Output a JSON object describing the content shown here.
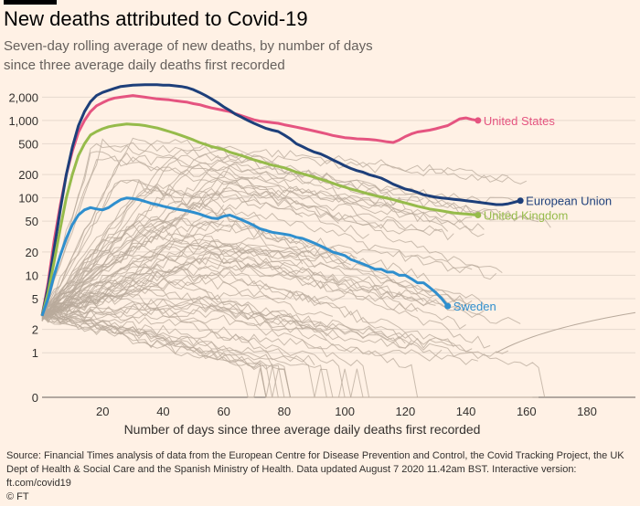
{
  "title": "New deaths attributed to Covid-19",
  "subtitle": "Seven-day rolling average of new deaths, by number of days since three average daily deaths first recorded",
  "source": "Source: Financial Times analysis of data from the European Centre for Disease Prevention and Control, the Covid Tracking Project, the UK Dept of Health & Social Care and the Spanish Ministry of Health. Data updated August 7 2020 11.42am BST. Interactive version: ft.com/covid19",
  "copyright": "© FT",
  "chart_data": {
    "type": "line",
    "xlabel": "Number of days since three average daily deaths first recorded",
    "ylabel": "",
    "y_scale": "log",
    "x_ticks": [
      20,
      40,
      60,
      80,
      100,
      120,
      140,
      160,
      180
    ],
    "y_ticks": [
      {
        "v": 0,
        "label": "0"
      },
      {
        "v": 1,
        "label": "1"
      },
      {
        "v": 2,
        "label": "2"
      },
      {
        "v": 5,
        "label": "5"
      },
      {
        "v": 10,
        "label": "10"
      },
      {
        "v": 20,
        "label": "20"
      },
      {
        "v": 50,
        "label": "50"
      },
      {
        "v": 100,
        "label": "100"
      },
      {
        "v": 200,
        "label": "200"
      },
      {
        "v": 500,
        "label": "500"
      },
      {
        "v": 1000,
        "label": "1,000"
      },
      {
        "v": 2000,
        "label": "2,000"
      }
    ],
    "grid": true,
    "series": [
      {
        "name": "United States",
        "color": "#e55480",
        "label": "United States",
        "points": [
          [
            0,
            3
          ],
          [
            2,
            8
          ],
          [
            4,
            28
          ],
          [
            6,
            80
          ],
          [
            8,
            200
          ],
          [
            10,
            400
          ],
          [
            12,
            700
          ],
          [
            14,
            1000
          ],
          [
            16,
            1300
          ],
          [
            18,
            1550
          ],
          [
            20,
            1700
          ],
          [
            22,
            1850
          ],
          [
            24,
            1950
          ],
          [
            26,
            2000
          ],
          [
            28,
            2050
          ],
          [
            30,
            2100
          ],
          [
            32,
            2050
          ],
          [
            34,
            2000
          ],
          [
            36,
            1950
          ],
          [
            38,
            1900
          ],
          [
            40,
            1880
          ],
          [
            42,
            1850
          ],
          [
            44,
            1800
          ],
          [
            46,
            1760
          ],
          [
            48,
            1720
          ],
          [
            50,
            1650
          ],
          [
            52,
            1600
          ],
          [
            54,
            1520
          ],
          [
            56,
            1450
          ],
          [
            58,
            1400
          ],
          [
            60,
            1350
          ],
          [
            62,
            1300
          ],
          [
            64,
            1220
          ],
          [
            66,
            1150
          ],
          [
            68,
            1080
          ],
          [
            70,
            1020
          ],
          [
            72,
            980
          ],
          [
            74,
            960
          ],
          [
            76,
            940
          ],
          [
            78,
            920
          ],
          [
            80,
            880
          ],
          [
            82,
            850
          ],
          [
            84,
            820
          ],
          [
            86,
            790
          ],
          [
            88,
            760
          ],
          [
            90,
            730
          ],
          [
            92,
            700
          ],
          [
            94,
            670
          ],
          [
            96,
            640
          ],
          [
            98,
            620
          ],
          [
            100,
            600
          ],
          [
            102,
            590
          ],
          [
            104,
            580
          ],
          [
            106,
            575
          ],
          [
            108,
            570
          ],
          [
            110,
            560
          ],
          [
            112,
            545
          ],
          [
            114,
            530
          ],
          [
            116,
            520
          ],
          [
            118,
            560
          ],
          [
            120,
            620
          ],
          [
            122,
            670
          ],
          [
            124,
            710
          ],
          [
            126,
            730
          ],
          [
            128,
            750
          ],
          [
            130,
            780
          ],
          [
            132,
            820
          ],
          [
            134,
            860
          ],
          [
            136,
            950
          ],
          [
            138,
            1050
          ],
          [
            140,
            1080
          ],
          [
            142,
            1030
          ],
          [
            144,
            1000
          ]
        ]
      },
      {
        "name": "European Union",
        "color": "#1d3f7a",
        "label": "European Union",
        "points": [
          [
            0,
            3
          ],
          [
            2,
            7
          ],
          [
            4,
            22
          ],
          [
            6,
            70
          ],
          [
            8,
            200
          ],
          [
            10,
            450
          ],
          [
            12,
            850
          ],
          [
            14,
            1300
          ],
          [
            16,
            1750
          ],
          [
            18,
            2100
          ],
          [
            20,
            2300
          ],
          [
            22,
            2450
          ],
          [
            24,
            2600
          ],
          [
            26,
            2750
          ],
          [
            28,
            2800
          ],
          [
            30,
            2850
          ],
          [
            32,
            2880
          ],
          [
            34,
            2900
          ],
          [
            36,
            2900
          ],
          [
            38,
            2900
          ],
          [
            40,
            2850
          ],
          [
            42,
            2850
          ],
          [
            44,
            2800
          ],
          [
            46,
            2750
          ],
          [
            48,
            2650
          ],
          [
            50,
            2500
          ],
          [
            52,
            2300
          ],
          [
            54,
            2100
          ],
          [
            56,
            1900
          ],
          [
            58,
            1700
          ],
          [
            60,
            1500
          ],
          [
            62,
            1350
          ],
          [
            64,
            1200
          ],
          [
            66,
            1100
          ],
          [
            68,
            1000
          ],
          [
            70,
            920
          ],
          [
            72,
            850
          ],
          [
            74,
            790
          ],
          [
            76,
            750
          ],
          [
            78,
            720
          ],
          [
            80,
            650
          ],
          [
            82,
            580
          ],
          [
            84,
            500
          ],
          [
            86,
            460
          ],
          [
            88,
            420
          ],
          [
            90,
            390
          ],
          [
            92,
            370
          ],
          [
            94,
            340
          ],
          [
            96,
            310
          ],
          [
            98,
            285
          ],
          [
            100,
            260
          ],
          [
            102,
            240
          ],
          [
            104,
            225
          ],
          [
            106,
            215
          ],
          [
            108,
            200
          ],
          [
            110,
            190
          ],
          [
            112,
            180
          ],
          [
            114,
            165
          ],
          [
            116,
            150
          ],
          [
            118,
            140
          ],
          [
            120,
            130
          ],
          [
            122,
            125
          ],
          [
            124,
            118
          ],
          [
            126,
            110
          ],
          [
            128,
            106
          ],
          [
            130,
            102
          ],
          [
            132,
            100
          ],
          [
            134,
            98
          ],
          [
            136,
            96
          ],
          [
            138,
            94
          ],
          [
            140,
            92
          ],
          [
            142,
            90
          ],
          [
            144,
            88
          ],
          [
            146,
            86
          ],
          [
            148,
            84
          ],
          [
            150,
            82
          ],
          [
            152,
            82
          ],
          [
            154,
            84
          ],
          [
            156,
            88
          ],
          [
            158,
            92
          ]
        ]
      },
      {
        "name": "United Kingdom",
        "color": "#96bb4b",
        "label": "United Kingdom",
        "points": [
          [
            0,
            3
          ],
          [
            2,
            6
          ],
          [
            4,
            15
          ],
          [
            6,
            40
          ],
          [
            8,
            100
          ],
          [
            10,
            200
          ],
          [
            12,
            350
          ],
          [
            14,
            500
          ],
          [
            16,
            650
          ],
          [
            18,
            720
          ],
          [
            20,
            780
          ],
          [
            22,
            830
          ],
          [
            24,
            860
          ],
          [
            26,
            880
          ],
          [
            28,
            900
          ],
          [
            30,
            890
          ],
          [
            32,
            880
          ],
          [
            34,
            860
          ],
          [
            36,
            830
          ],
          [
            38,
            800
          ],
          [
            40,
            760
          ],
          [
            42,
            720
          ],
          [
            44,
            680
          ],
          [
            46,
            640
          ],
          [
            48,
            600
          ],
          [
            50,
            560
          ],
          [
            52,
            520
          ],
          [
            54,
            490
          ],
          [
            56,
            460
          ],
          [
            58,
            440
          ],
          [
            60,
            420
          ],
          [
            62,
            390
          ],
          [
            64,
            370
          ],
          [
            66,
            350
          ],
          [
            68,
            330
          ],
          [
            70,
            310
          ],
          [
            72,
            295
          ],
          [
            74,
            280
          ],
          [
            76,
            265
          ],
          [
            78,
            255
          ],
          [
            80,
            245
          ],
          [
            82,
            230
          ],
          [
            84,
            215
          ],
          [
            86,
            205
          ],
          [
            88,
            195
          ],
          [
            90,
            185
          ],
          [
            92,
            175
          ],
          [
            94,
            165
          ],
          [
            96,
            155
          ],
          [
            98,
            145
          ],
          [
            100,
            138
          ],
          [
            102,
            130
          ],
          [
            104,
            124
          ],
          [
            106,
            118
          ],
          [
            108,
            112
          ],
          [
            110,
            107
          ],
          [
            112,
            103
          ],
          [
            114,
            99
          ],
          [
            116,
            95
          ],
          [
            118,
            90
          ],
          [
            120,
            86
          ],
          [
            122,
            82
          ],
          [
            124,
            78
          ],
          [
            126,
            75
          ],
          [
            128,
            72
          ],
          [
            130,
            70
          ],
          [
            132,
            68
          ],
          [
            134,
            66
          ],
          [
            136,
            64
          ],
          [
            138,
            63
          ],
          [
            140,
            62
          ],
          [
            142,
            61
          ],
          [
            144,
            60
          ]
        ]
      },
      {
        "name": "Sweden",
        "color": "#2f8fce",
        "label": "Sweden",
        "points": [
          [
            0,
            3
          ],
          [
            2,
            5
          ],
          [
            4,
            10
          ],
          [
            6,
            18
          ],
          [
            8,
            30
          ],
          [
            10,
            45
          ],
          [
            12,
            60
          ],
          [
            14,
            70
          ],
          [
            16,
            75
          ],
          [
            18,
            72
          ],
          [
            20,
            70
          ],
          [
            22,
            75
          ],
          [
            24,
            85
          ],
          [
            26,
            95
          ],
          [
            28,
            100
          ],
          [
            30,
            98
          ],
          [
            32,
            95
          ],
          [
            34,
            90
          ],
          [
            36,
            85
          ],
          [
            38,
            82
          ],
          [
            40,
            78
          ],
          [
            42,
            75
          ],
          [
            44,
            72
          ],
          [
            46,
            70
          ],
          [
            48,
            68
          ],
          [
            50,
            65
          ],
          [
            52,
            62
          ],
          [
            54,
            58
          ],
          [
            56,
            55
          ],
          [
            58,
            54
          ],
          [
            60,
            58
          ],
          [
            62,
            60
          ],
          [
            64,
            56
          ],
          [
            66,
            52
          ],
          [
            68,
            48
          ],
          [
            70,
            44
          ],
          [
            72,
            40
          ],
          [
            74,
            38
          ],
          [
            76,
            36
          ],
          [
            78,
            35
          ],
          [
            80,
            34
          ],
          [
            82,
            33
          ],
          [
            84,
            31
          ],
          [
            86,
            30
          ],
          [
            88,
            28
          ],
          [
            90,
            26
          ],
          [
            92,
            24
          ],
          [
            94,
            22
          ],
          [
            96,
            20
          ],
          [
            98,
            19
          ],
          [
            100,
            18
          ],
          [
            102,
            16
          ],
          [
            104,
            15
          ],
          [
            106,
            14
          ],
          [
            108,
            13
          ],
          [
            110,
            12
          ],
          [
            112,
            12
          ],
          [
            114,
            11
          ],
          [
            116,
            11
          ],
          [
            118,
            10
          ],
          [
            120,
            10
          ],
          [
            122,
            9
          ],
          [
            124,
            8
          ],
          [
            126,
            8
          ],
          [
            128,
            7
          ],
          [
            130,
            6
          ],
          [
            132,
            5
          ],
          [
            134,
            4
          ]
        ]
      }
    ],
    "background_series_color": "#b8a99b",
    "background_series_note": "Many other countries drawn in grey"
  }
}
